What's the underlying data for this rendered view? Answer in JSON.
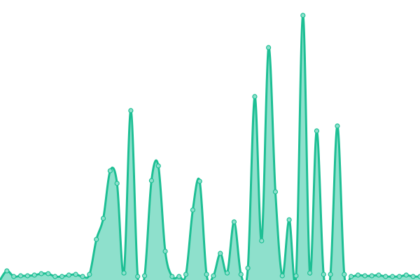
{
  "chart_data": {
    "type": "area",
    "title": "",
    "xlabel": "",
    "ylabel": "",
    "x": [
      1,
      2,
      3,
      4,
      5,
      6,
      7,
      8,
      9,
      10,
      11,
      12,
      13,
      14,
      15,
      16,
      17,
      18,
      19,
      20,
      21,
      22,
      23,
      24,
      25,
      26,
      27,
      28,
      29,
      30,
      31,
      32,
      33,
      34,
      35,
      36,
      37,
      38,
      39,
      40,
      41,
      42,
      43,
      44,
      45,
      46,
      47,
      48,
      49,
      50,
      51,
      52,
      53,
      54,
      55,
      56,
      57,
      58,
      59,
      60,
      61
    ],
    "xlim": [
      0,
      61
    ],
    "values": [
      13,
      5,
      6,
      6,
      7,
      9,
      9,
      5,
      5,
      7,
      8,
      5,
      8,
      58,
      88,
      156,
      138,
      10,
      242,
      5,
      6,
      142,
      163,
      41,
      5,
      5,
      8,
      100,
      141,
      8,
      6,
      38,
      10,
      83,
      8,
      17,
      262,
      56,
      332,
      126,
      6,
      86,
      6,
      378,
      10,
      213,
      8,
      8,
      220,
      8,
      5,
      7,
      6,
      6,
      7,
      5,
      5,
      5,
      7,
      5,
      5
    ],
    "ylim": [
      0,
      400
    ],
    "grid": false,
    "axes_visible": false,
    "smooth": true,
    "markers": true,
    "colors": {
      "line": "#1dbf94",
      "fill": "#8ee0cc",
      "marker_fill": "#8ee0cc",
      "marker_stroke": "#1dbf94"
    }
  }
}
